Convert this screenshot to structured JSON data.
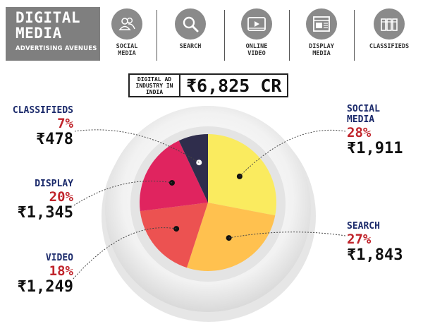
{
  "header": {
    "title_line1": "DIGITAL",
    "title_line2": "MEDIA",
    "subtitle": "ADVERTISING AVENUES",
    "nav": [
      {
        "label": "SOCIAL\nMEDIA",
        "icon": "people-icon"
      },
      {
        "label": "SEARCH",
        "icon": "magnifier-icon"
      },
      {
        "label": "ONLINE\nVIDEO",
        "icon": "video-player-icon"
      },
      {
        "label": "DISPLAY\nMEDIA",
        "icon": "display-ad-icon"
      },
      {
        "label": "CLASSIFIEDS",
        "icon": "newspaper-icon"
      }
    ]
  },
  "total": {
    "caption": "DIGITAL AD INDUSTRY IN INDIA",
    "value": "₹6,825 CR"
  },
  "chart_data": {
    "type": "pie",
    "slices": [
      {
        "name": "SOCIAL\nMEDIA",
        "percent": 28,
        "percent_label": "28%",
        "amount_label": "₹1,911",
        "value": 1911,
        "color": "#faeb5f"
      },
      {
        "name": "SEARCH",
        "percent": 27,
        "percent_label": "27%",
        "amount_label": "₹1,843",
        "value": 1843,
        "color": "#ffc14f"
      },
      {
        "name": "VIDEO",
        "percent": 18,
        "percent_label": "18%",
        "amount_label": "₹1,249",
        "value": 1249,
        "color": "#ec5251"
      },
      {
        "name": "DISPLAY",
        "percent": 20,
        "percent_label": "20%",
        "amount_label": "₹1,345",
        "value": 1345,
        "color": "#e0245f"
      },
      {
        "name": "CLASSIFIEDS",
        "percent": 7,
        "percent_label": "7%",
        "amount_label": "₹478",
        "value": 478,
        "color": "#2f2d4c"
      }
    ],
    "start_angle_deg": 0,
    "label_colors": {
      "name": "#1b2a6b",
      "percent": "#c0242b",
      "amount": "#111111"
    }
  }
}
